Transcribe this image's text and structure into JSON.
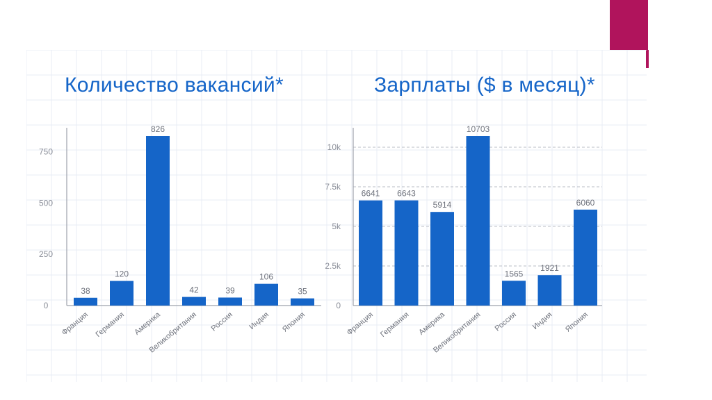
{
  "slide": {
    "accent_color": "#b0145c",
    "grid_color": "#e9ecf4"
  },
  "chart_data": [
    {
      "type": "bar",
      "title": "Количество вакансий*",
      "xlabel": "",
      "ylabel": "",
      "categories": [
        "Франция",
        "Германия",
        "Америка",
        "Великобритания",
        "Россия",
        "Индия",
        "Япония"
      ],
      "values": [
        38,
        120,
        826,
        42,
        39,
        106,
        35
      ],
      "data_labels": [
        "38",
        "120",
        "826",
        "42",
        "39",
        "106",
        "35"
      ],
      "ylim": [
        0,
        826
      ],
      "yticks": [
        0,
        250,
        500,
        750
      ],
      "ytick_labels": [
        "0",
        "250",
        "500",
        "750"
      ],
      "grid": false,
      "bar_color": "#1565c8",
      "title_color": "#1565c8"
    },
    {
      "type": "bar",
      "title": "Зарплаты ($ в месяц)*",
      "xlabel": "",
      "ylabel": "",
      "categories": [
        "Франция",
        "Германия",
        "Америка",
        "Великобритания",
        "Россия",
        "Индия",
        "Япония"
      ],
      "values": [
        6641,
        6643,
        5914,
        10703,
        1565,
        1921,
        6060
      ],
      "data_labels": [
        "6641",
        "6643",
        "5914",
        "10703",
        "1565",
        "1921",
        "6060"
      ],
      "ylim": [
        0,
        10703
      ],
      "yticks": [
        0,
        2500,
        5000,
        7500,
        10000
      ],
      "ytick_labels": [
        "0",
        "2.5k",
        "5k",
        "7.5k",
        "10k"
      ],
      "grid": true,
      "bar_color": "#1565c8",
      "title_color": "#1565c8"
    }
  ]
}
